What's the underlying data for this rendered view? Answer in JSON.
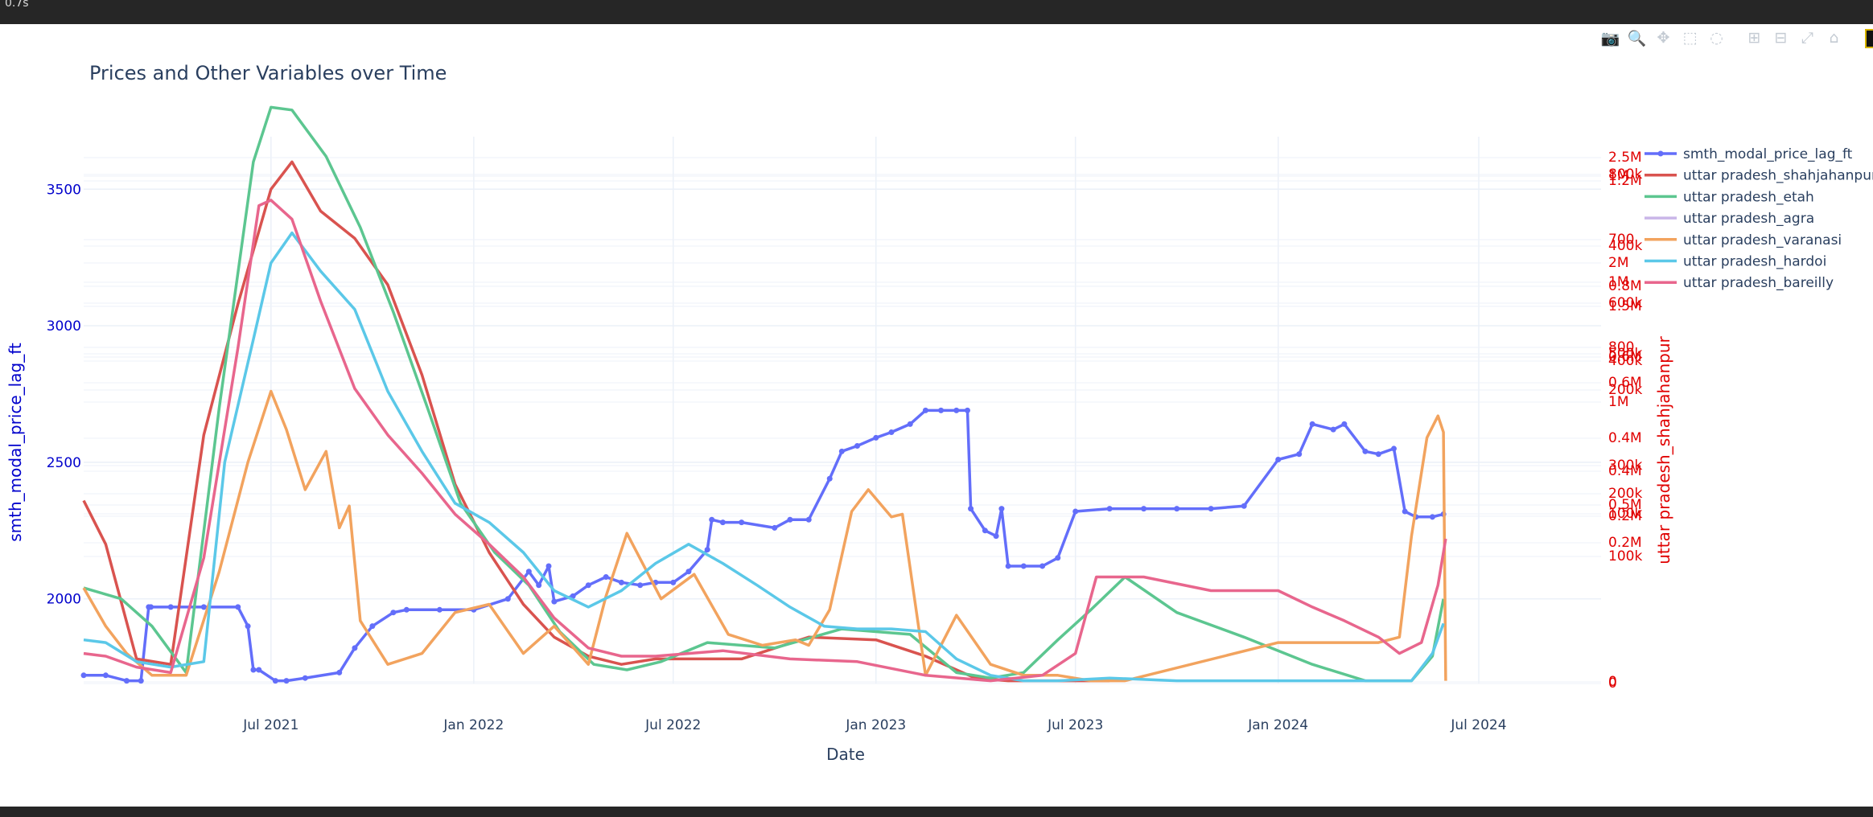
{
  "notebook": {
    "exec_time": "0.7s"
  },
  "modebar": {
    "buttons": [
      {
        "name": "camera-icon",
        "glyph": "📷"
      },
      {
        "name": "zoom-icon",
        "glyph": "🔍"
      },
      {
        "name": "pan-icon",
        "glyph": "✥"
      },
      {
        "name": "box-select-icon",
        "glyph": "⬚"
      },
      {
        "name": "lasso-icon",
        "glyph": "◌"
      },
      {
        "name": "zoom-in-icon",
        "glyph": "⊞"
      },
      {
        "name": "zoom-out-icon",
        "glyph": "⊟"
      },
      {
        "name": "autoscale-icon",
        "glyph": "⤢"
      },
      {
        "name": "home-icon",
        "glyph": "⌂"
      }
    ]
  },
  "chart_data": {
    "type": "line",
    "title": "Prices and Other Variables over Time",
    "xlabel": "Date",
    "ylabel": "smth_modal_price_lag_ft",
    "y2label": "uttar pradesh_shahjahanpur",
    "x_ticks": [
      "Jul 2021",
      "Jan 2022",
      "Jul 2022",
      "Jan 2023",
      "Jul 2023",
      "Jan 2024",
      "Jul 2024"
    ],
    "x_range": [
      "2021-01-12",
      "2024-10-20"
    ],
    "y_ticks": [
      2000,
      2500,
      3000,
      3500
    ],
    "y_range": [
      1690,
      3810
    ],
    "y2_ticks": [
      "2.5M",
      "800k",
      "1M",
      "1.2M",
      "700",
      "400k",
      "2M",
      "1M",
      "0.8M",
      "600k",
      "1.5M",
      "800",
      "500k",
      "0.6M",
      "400k",
      "0.6M",
      "200k",
      "1M",
      "0.4M",
      "300k",
      "0.4M",
      "200k",
      "0.5M",
      "100k",
      "0.2M",
      "0.2M",
      "100k",
      "0",
      "0"
    ],
    "grid": true,
    "legend_position": "top-right",
    "colors": {
      "smth_modal_price_lag_ft": "#636efa",
      "uttar pradesh_shahjahanpur": "#d9534f",
      "uttar pradesh_etah": "#5cc690",
      "uttar pradesh_agra": "#c9b6e8",
      "uttar pradesh_varanasi": "#f2a35e",
      "uttar pradesh_hardoi": "#5bc8e8",
      "uttar pradesh_bareilly": "#e8668d"
    },
    "series": [
      {
        "name": "smth_modal_price_lag_ft",
        "markers": true,
        "x": [
          "2021-01-12",
          "2021-02-01",
          "2021-02-20",
          "2021-03-05",
          "2021-03-12",
          "2021-03-14",
          "2021-04-01",
          "2021-05-01",
          "2021-06-01",
          "2021-06-10",
          "2021-06-15",
          "2021-06-20",
          "2021-07-05",
          "2021-07-15",
          "2021-08-01",
          "2021-09-01",
          "2021-09-15",
          "2021-10-01",
          "2021-10-20",
          "2021-11-01",
          "2021-12-01",
          "2022-01-01",
          "2022-02-01",
          "2022-02-20",
          "2022-03-01",
          "2022-03-10",
          "2022-03-15",
          "2022-04-01",
          "2022-04-15",
          "2022-05-01",
          "2022-05-15",
          "2022-06-01",
          "2022-06-15",
          "2022-07-01",
          "2022-07-15",
          "2022-08-01",
          "2022-08-05",
          "2022-08-15",
          "2022-09-01",
          "2022-10-01",
          "2022-10-15",
          "2022-11-01",
          "2022-11-20",
          "2022-12-01",
          "2022-12-15",
          "2023-01-01",
          "2023-01-15",
          "2023-02-01",
          "2023-02-15",
          "2023-03-01",
          "2023-03-15",
          "2023-03-25",
          "2023-03-28",
          "2023-04-10",
          "2023-04-20",
          "2023-04-25",
          "2023-05-01",
          "2023-05-15",
          "2023-06-01",
          "2023-06-15",
          "2023-07-01",
          "2023-08-01",
          "2023-09-01",
          "2023-10-01",
          "2023-11-01",
          "2023-12-01",
          "2024-01-01",
          "2024-01-20",
          "2024-02-01",
          "2024-02-20",
          "2024-03-01",
          "2024-03-20",
          "2024-04-01",
          "2024-04-15",
          "2024-04-25",
          "2024-05-05",
          "2024-05-20",
          "2024-05-30"
        ],
        "y": [
          1720,
          1720,
          1700,
          1700,
          1970,
          1970,
          1970,
          1970,
          1970,
          1900,
          1740,
          1740,
          1700,
          1700,
          1710,
          1730,
          1820,
          1900,
          1950,
          1960,
          1960,
          1960,
          2000,
          2100,
          2050,
          2120,
          1990,
          2010,
          2050,
          2080,
          2060,
          2050,
          2060,
          2060,
          2100,
          2180,
          2290,
          2280,
          2280,
          2260,
          2290,
          2290,
          2440,
          2540,
          2560,
          2590,
          2610,
          2640,
          2690,
          2690,
          2690,
          2690,
          2330,
          2250,
          2230,
          2330,
          2120,
          2120,
          2120,
          2150,
          2320,
          2330,
          2330,
          2330,
          2330,
          2340,
          2510,
          2530,
          2640,
          2620,
          2640,
          2540,
          2530,
          2550,
          2320,
          2300,
          2300,
          2310
        ]
      },
      {
        "name": "uttar pradesh_shahjahanpur",
        "x": [
          "2021-01-12",
          "2021-02-01",
          "2021-03-01",
          "2021-04-01",
          "2021-05-01",
          "2021-06-01",
          "2021-07-01",
          "2021-07-20",
          "2021-08-15",
          "2021-09-15",
          "2021-10-15",
          "2021-11-15",
          "2021-12-15",
          "2022-01-15",
          "2022-02-15",
          "2022-03-15",
          "2022-04-15",
          "2022-05-15",
          "2022-06-15",
          "2022-07-15",
          "2022-09-01",
          "2022-11-01",
          "2023-01-01",
          "2023-02-15",
          "2023-04-01",
          "2023-05-01",
          "2023-06-15",
          "2023-08-01"
        ],
        "y": [
          2360,
          2200,
          1780,
          1760,
          2600,
          3080,
          3500,
          3600,
          3420,
          3320,
          3150,
          2820,
          2420,
          2170,
          1980,
          1860,
          1790,
          1760,
          1780,
          1780,
          1780,
          1860,
          1850,
          1790,
          1710,
          1700,
          1700,
          1700
        ]
      },
      {
        "name": "uttar pradesh_etah",
        "x": [
          "2021-01-12",
          "2021-02-15",
          "2021-03-15",
          "2021-04-15",
          "2021-05-15",
          "2021-06-15",
          "2021-07-01",
          "2021-07-20",
          "2021-08-20",
          "2021-09-20",
          "2021-10-20",
          "2021-11-20",
          "2021-12-20",
          "2022-01-20",
          "2022-02-20",
          "2022-03-20",
          "2022-04-20",
          "2022-05-20",
          "2022-06-20",
          "2022-08-01",
          "2022-10-01",
          "2022-12-01",
          "2023-02-01",
          "2023-03-15",
          "2023-04-15",
          "2023-05-15",
          "2023-06-15",
          "2023-07-15",
          "2023-08-15",
          "2023-10-01",
          "2023-12-01",
          "2024-02-01",
          "2024-03-20",
          "2024-05-01",
          "2024-05-20",
          "2024-05-30"
        ],
        "y": [
          2040,
          2000,
          1900,
          1730,
          2700,
          3600,
          3800,
          3790,
          3620,
          3360,
          3050,
          2700,
          2350,
          2170,
          2050,
          1880,
          1760,
          1740,
          1770,
          1840,
          1820,
          1890,
          1870,
          1730,
          1710,
          1730,
          1850,
          1960,
          2080,
          1950,
          1860,
          1760,
          1700,
          1700,
          1790,
          2000
        ]
      },
      {
        "name": "uttar pradesh_agra",
        "x": [],
        "y": []
      },
      {
        "name": "uttar pradesh_varanasi",
        "x": [
          "2021-01-12",
          "2021-02-01",
          "2021-02-20",
          "2021-03-15",
          "2021-04-15",
          "2021-05-15",
          "2021-06-10",
          "2021-07-01",
          "2021-07-15",
          "2021-08-01",
          "2021-08-20",
          "2021-09-01",
          "2021-09-10",
          "2021-09-20",
          "2021-10-15",
          "2021-11-15",
          "2021-12-15",
          "2022-01-15",
          "2022-02-15",
          "2022-03-15",
          "2022-04-15",
          "2022-05-01",
          "2022-05-20",
          "2022-06-20",
          "2022-07-20",
          "2022-08-20",
          "2022-09-20",
          "2022-10-20",
          "2022-11-01",
          "2022-11-20",
          "2022-12-10",
          "2022-12-25",
          "2023-01-15",
          "2023-01-25",
          "2023-02-15",
          "2023-03-15",
          "2023-04-15",
          "2023-05-15",
          "2023-06-15",
          "2023-07-15",
          "2023-08-15",
          "2024-01-01",
          "2024-02-01",
          "2024-03-01",
          "2024-04-01",
          "2024-04-20",
          "2024-05-01",
          "2024-05-15",
          "2024-05-25",
          "2024-05-30",
          "2024-06-01"
        ],
        "y": [
          2040,
          1900,
          1800,
          1720,
          1720,
          2100,
          2500,
          2760,
          2620,
          2400,
          2540,
          2260,
          2340,
          1920,
          1760,
          1800,
          1950,
          1980,
          1800,
          1900,
          1760,
          2010,
          2240,
          2000,
          2090,
          1870,
          1830,
          1850,
          1830,
          1960,
          2320,
          2400,
          2300,
          2310,
          1720,
          1940,
          1760,
          1720,
          1720,
          1700,
          1700,
          1840,
          1840,
          1840,
          1840,
          1860,
          2230,
          2590,
          2670,
          2610,
          1700
        ]
      },
      {
        "name": "uttar pradesh_hardoi",
        "x": [
          "2021-01-12",
          "2021-02-01",
          "2021-03-01",
          "2021-04-01",
          "2021-05-01",
          "2021-05-20",
          "2021-06-15",
          "2021-07-01",
          "2021-07-20",
          "2021-08-15",
          "2021-09-15",
          "2021-10-15",
          "2021-11-15",
          "2021-12-15",
          "2022-01-15",
          "2022-02-15",
          "2022-03-15",
          "2022-04-15",
          "2022-05-15",
          "2022-06-15",
          "2022-07-15",
          "2022-08-15",
          "2022-09-15",
          "2022-10-15",
          "2022-11-15",
          "2022-12-15",
          "2023-01-15",
          "2023-02-15",
          "2023-03-15",
          "2023-04-15",
          "2023-05-15",
          "2023-06-15",
          "2023-08-01",
          "2023-10-01",
          "2023-11-01",
          "2024-04-01",
          "2024-05-01",
          "2024-05-20",
          "2024-05-30"
        ],
        "y": [
          1850,
          1840,
          1770,
          1750,
          1770,
          2500,
          2950,
          3230,
          3340,
          3200,
          3060,
          2760,
          2540,
          2350,
          2280,
          2170,
          2030,
          1970,
          2030,
          2130,
          2200,
          2130,
          2050,
          1970,
          1900,
          1890,
          1890,
          1880,
          1780,
          1720,
          1700,
          1700,
          1710,
          1700,
          1700,
          1700,
          1700,
          1800,
          1910
        ]
      },
      {
        "name": "uttar pradesh_bareilly",
        "x": [
          "2021-01-12",
          "2021-02-01",
          "2021-03-01",
          "2021-04-01",
          "2021-05-01",
          "2021-06-01",
          "2021-06-20",
          "2021-07-01",
          "2021-07-20",
          "2021-08-15",
          "2021-09-15",
          "2021-10-15",
          "2021-11-15",
          "2021-12-15",
          "2022-01-15",
          "2022-02-15",
          "2022-03-15",
          "2022-04-15",
          "2022-05-15",
          "2022-06-15",
          "2022-08-15",
          "2022-10-15",
          "2022-12-15",
          "2023-02-15",
          "2023-04-15",
          "2023-06-01",
          "2023-07-01",
          "2023-07-20",
          "2023-09-01",
          "2023-11-01",
          "2024-01-01",
          "2024-02-01",
          "2024-03-01",
          "2024-04-01",
          "2024-04-20",
          "2024-05-10",
          "2024-05-25",
          "2024-06-01"
        ],
        "y": [
          1800,
          1790,
          1750,
          1730,
          2150,
          2920,
          3440,
          3460,
          3390,
          3090,
          2770,
          2600,
          2460,
          2310,
          2200,
          2080,
          1930,
          1820,
          1790,
          1790,
          1810,
          1780,
          1770,
          1720,
          1700,
          1720,
          1800,
          2080,
          2080,
          2030,
          2030,
          1970,
          1920,
          1860,
          1800,
          1840,
          2050,
          2220
        ]
      }
    ]
  }
}
